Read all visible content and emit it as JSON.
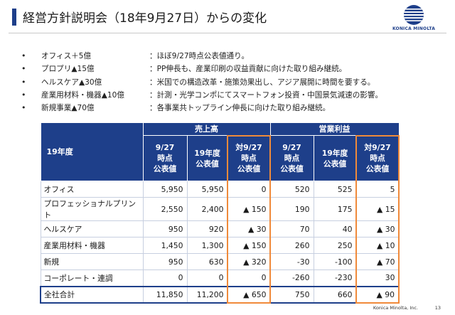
{
  "title": "経営方針説明会（18年9月27日）からの変化",
  "logo_text": "KONICA MINOLTA",
  "bullets": [
    {
      "mark": "•",
      "head": "オフィス＋5億",
      "body": "：ほぼ9/27時点公表値通り。"
    },
    {
      "mark": "•",
      "head": "プロプリ▲15億",
      "body": "：PP伸長も、産業印刷の収益貢献に向けた取り組み継続。"
    },
    {
      "mark": "•",
      "head": "ヘルスケア▲30億",
      "body": "：米国での構造改革・施策効果出し、アジア展開に時間を要する。"
    },
    {
      "mark": "•",
      "head": "産業用材料・機器▲10億",
      "body": "：計測・光学コンポにてスマートフォン投資・中国景気減速の影響。"
    },
    {
      "mark": "•",
      "head": "新規事業▲70億",
      "body": "：各事業共トップライン伸長に向けた取り組み継続。"
    }
  ],
  "table": {
    "year_label": "19年度",
    "groups": [
      "売上高",
      "営業利益"
    ],
    "columns": [
      [
        "9/27",
        "時点",
        "公表値"
      ],
      [
        "19年度",
        "公表値"
      ],
      [
        "対9/27",
        "時点",
        "公表値"
      ],
      [
        "9/27",
        "時点",
        "公表値"
      ],
      [
        "19年度",
        "公表値"
      ],
      [
        "対9/27",
        "時点",
        "公表値"
      ]
    ],
    "rows": [
      {
        "label": "オフィス",
        "values": [
          "5,950",
          "5,950",
          "0",
          "520",
          "525",
          "5"
        ]
      },
      {
        "label": "プロフェッショナルプリント",
        "values": [
          "2,550",
          "2,400",
          "▲ 150",
          "190",
          "175",
          "▲ 15"
        ]
      },
      {
        "label": "ヘルスケア",
        "values": [
          "950",
          "920",
          "▲ 30",
          "70",
          "40",
          "▲ 30"
        ]
      },
      {
        "label": "産業用材料・機器",
        "values": [
          "1,450",
          "1,300",
          "▲ 150",
          "260",
          "250",
          "▲ 10"
        ]
      },
      {
        "label": "新規",
        "values": [
          "950",
          "630",
          "▲ 320",
          "-30",
          "-100",
          "▲ 70"
        ]
      },
      {
        "label": "コーポレート・連調",
        "values": [
          "0",
          "0",
          "0",
          "-260",
          "-230",
          "30"
        ]
      },
      {
        "label": "全社合計",
        "values": [
          "11,850",
          "11,200",
          "▲ 650",
          "750",
          "660",
          "▲ 90"
        ]
      }
    ]
  },
  "colors": {
    "header": "#1e3f8a",
    "highlight_frame": "#f08a3a"
  },
  "footer": {
    "company": "Konica Minolta, Inc.",
    "page": "13"
  }
}
